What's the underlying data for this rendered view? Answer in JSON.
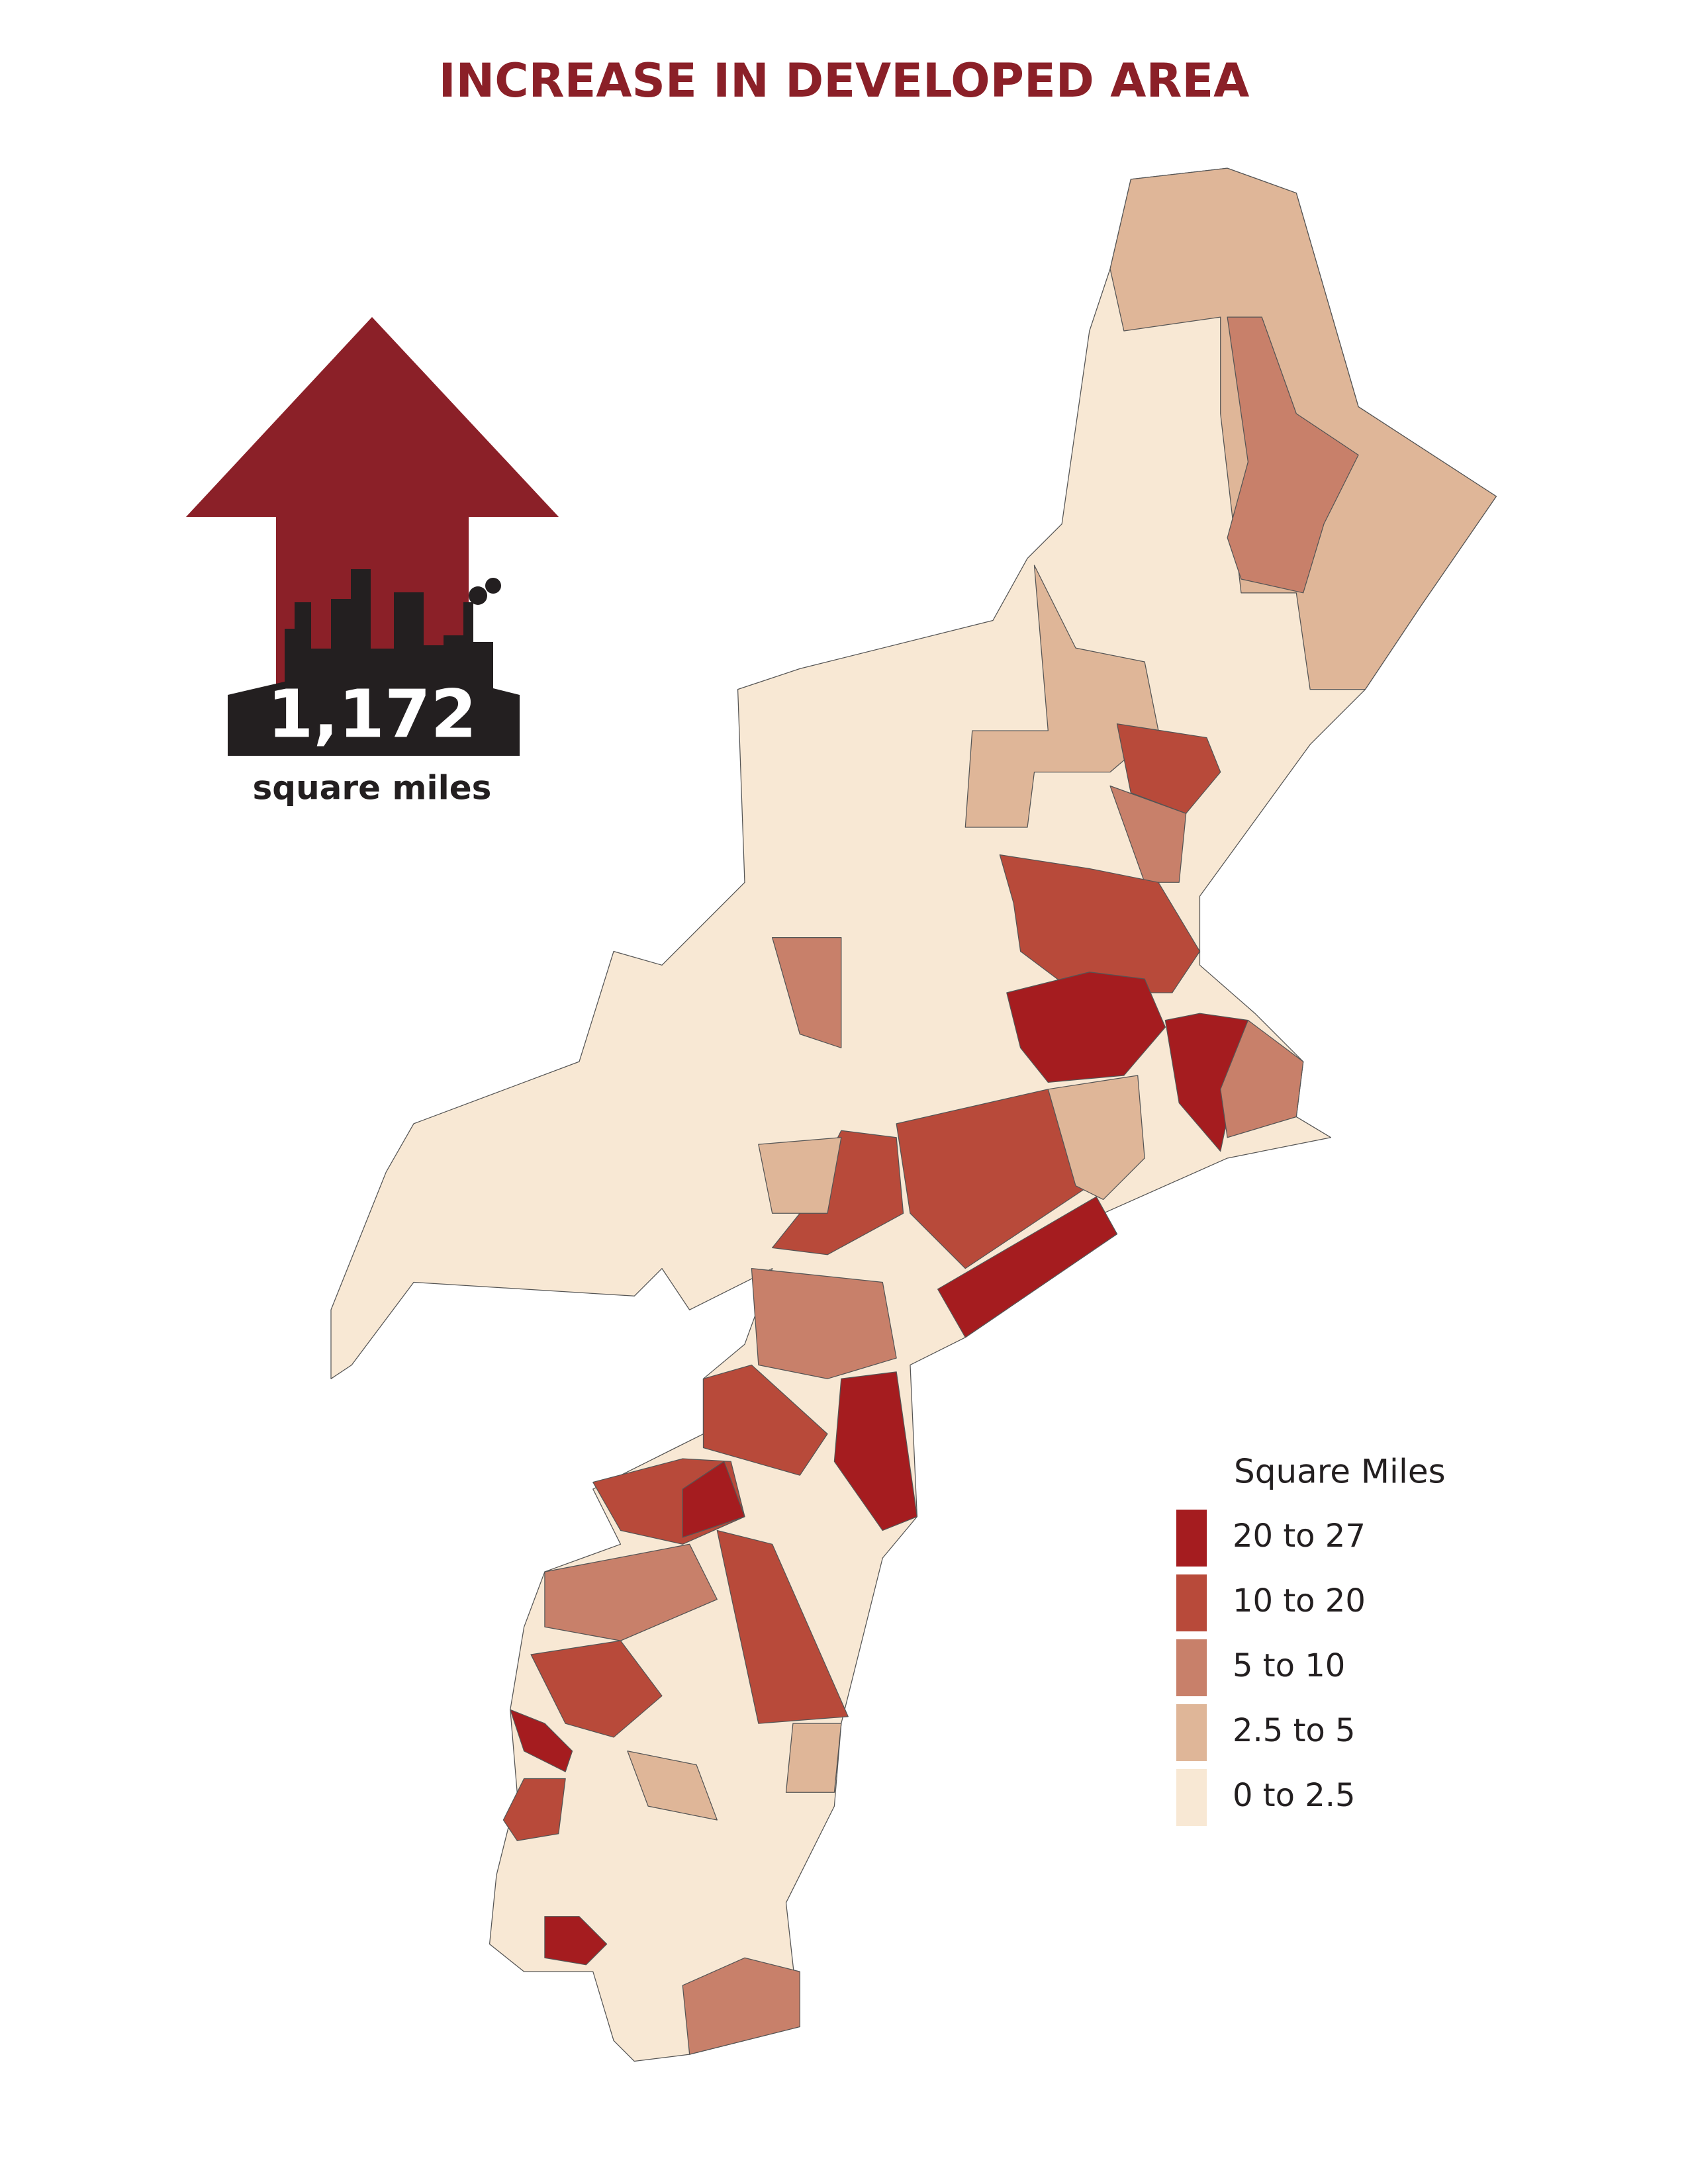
{
  "header": {
    "title": "INCREASE IN DEVELOPED AREA"
  },
  "stat": {
    "value": "1,172",
    "unit": "square miles"
  },
  "legend": {
    "title": "Square Miles",
    "items": [
      {
        "label": "20 to 27",
        "color": "#a51c1f"
      },
      {
        "label": "10 to 20",
        "color": "#b84a3a"
      },
      {
        "label": "5 to 10",
        "color": "#c8806a"
      },
      {
        "label": "2.5 to 5",
        "color": "#dfb698"
      },
      {
        "label": "0 to 2.5",
        "color": "#f8e8d4"
      }
    ]
  }
}
